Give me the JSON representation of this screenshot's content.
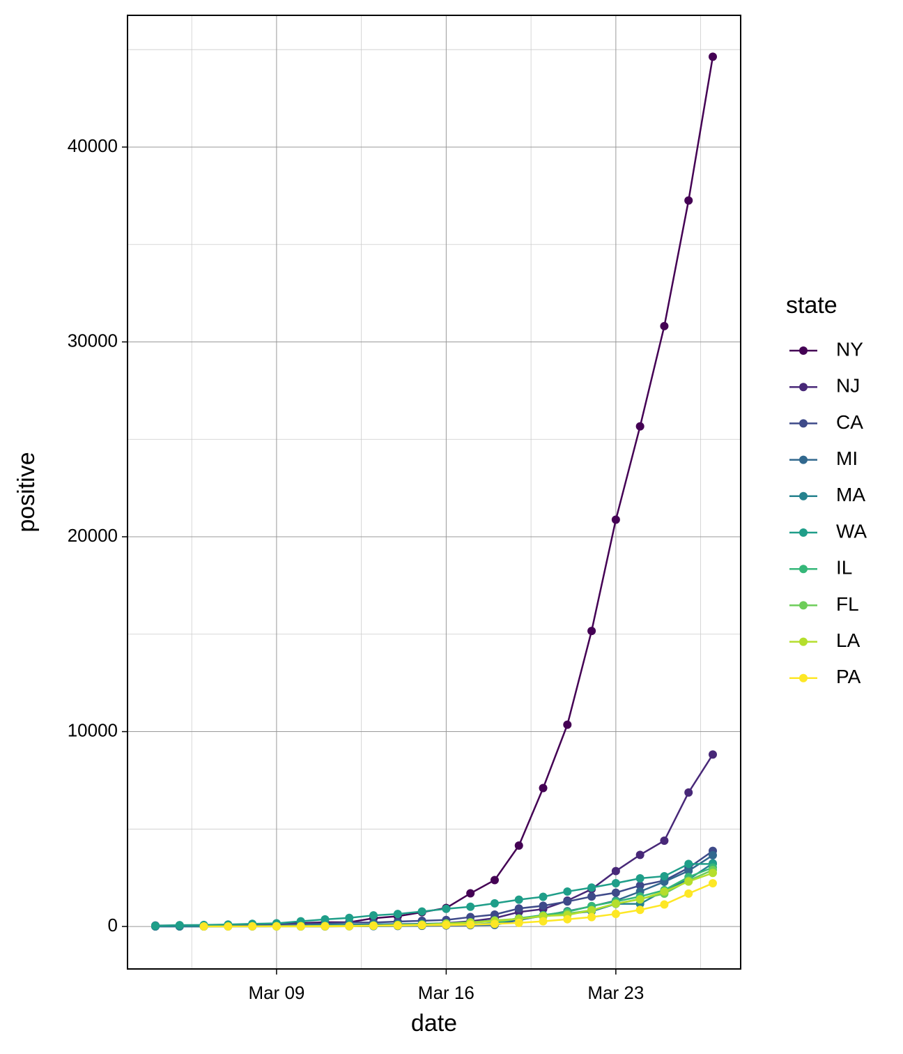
{
  "chart_data": {
    "type": "line",
    "x_label": "date",
    "y_label": "positive",
    "legend_title": "state",
    "x": [
      4,
      5,
      6,
      7,
      8,
      9,
      10,
      11,
      12,
      13,
      14,
      15,
      16,
      17,
      18,
      19,
      20,
      21,
      22,
      23,
      24,
      25,
      26,
      27
    ],
    "xlim": [
      2.85,
      28.15
    ],
    "xticks": [
      {
        "value": 9,
        "label": "Mar 09"
      },
      {
        "value": 16,
        "label": "Mar 16"
      },
      {
        "value": 23,
        "label": "Mar 23"
      }
    ],
    "ylim": [
      -2180,
      46760
    ],
    "yticks": [
      0,
      10000,
      20000,
      30000,
      40000
    ],
    "grid": true,
    "minor_grid": true,
    "legend": "right",
    "series": [
      {
        "name": "NY",
        "color": "#440154",
        "values": [
          11,
          22,
          33,
          76,
          105,
          142,
          173,
          216,
          216,
          421,
          524,
          729,
          950,
          1700,
          2382,
          4152,
          7102,
          10356,
          15168,
          20875,
          25665,
          30811,
          37258,
          44635
        ]
      },
      {
        "name": "NJ",
        "color": "#482878",
        "values": [
          1,
          2,
          4,
          5,
          6,
          11,
          15,
          23,
          29,
          50,
          69,
          98,
          178,
          267,
          427,
          742,
          890,
          1327,
          1914,
          2844,
          3675,
          4402,
          6876,
          8825
        ]
      },
      {
        "name": "CA",
        "color": "#3E4A89",
        "values": [
          53,
          53,
          60,
          69,
          88,
          114,
          133,
          157,
          202,
          202,
          252,
          293,
          335,
          483,
          611,
          924,
          1063,
          1279,
          1536,
          1733,
          2102,
          2355,
          3006,
          3879
        ]
      },
      {
        "name": "MI",
        "color": "#31688E",
        "values": [
          null,
          null,
          null,
          null,
          null,
          null,
          2,
          2,
          12,
          16,
          25,
          33,
          53,
          65,
          80,
          334,
          549,
          787,
          1035,
          1328,
          1791,
          2294,
          2856,
          3657
        ]
      },
      {
        "name": "MA",
        "color": "#26828E",
        "values": [
          1,
          1,
          2,
          7,
          13,
          28,
          41,
          92,
          95,
          108,
          123,
          138,
          164,
          218,
          256,
          413,
          525,
          646,
          777,
          1159,
          1159,
          1838,
          2417,
          3240
        ]
      },
      {
        "name": "WA",
        "color": "#1F9E89",
        "values": [
          39,
          70,
          79,
          102,
          136,
          162,
          267,
          366,
          442,
          568,
          642,
          769,
          904,
          1012,
          1187,
          1376,
          1524,
          1793,
          1996,
          2221,
          2469,
          2580,
          3207,
          3207
        ]
      },
      {
        "name": "IL",
        "color": "#35B779",
        "values": [
          null,
          null,
          5,
          6,
          7,
          7,
          11,
          19,
          25,
          32,
          46,
          64,
          93,
          105,
          160,
          422,
          585,
          753,
          1049,
          1285,
          1535,
          1865,
          2538,
          3026
        ]
      },
      {
        "name": "FL",
        "color": "#6DCD59",
        "values": [
          null,
          null,
          null,
          null,
          14,
          15,
          18,
          28,
          35,
          50,
          76,
          100,
          155,
          216,
          314,
          390,
          520,
          658,
          830,
          1171,
          1412,
          1682,
          2355,
          2900
        ]
      },
      {
        "name": "LA",
        "color": "#B4DE2C",
        "values": [
          null,
          null,
          null,
          null,
          null,
          1,
          1,
          6,
          13,
          33,
          77,
          91,
          136,
          196,
          280,
          392,
          537,
          585,
          837,
          1172,
          1388,
          1795,
          2305,
          2746
        ]
      },
      {
        "name": "PA",
        "color": "#FDE725",
        "values": [
          null,
          null,
          2,
          4,
          6,
          10,
          12,
          16,
          22,
          41,
          47,
          63,
          76,
          96,
          133,
          185,
          268,
          371,
          479,
          644,
          851,
          1127,
          1687,
          2218
        ]
      }
    ]
  }
}
